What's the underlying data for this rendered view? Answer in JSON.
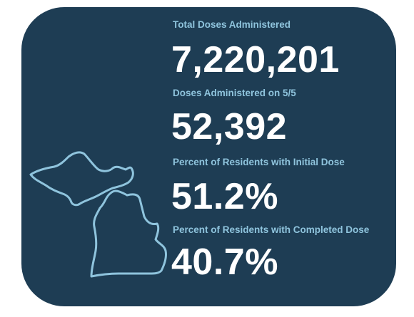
{
  "colors": {
    "card_background": "#1e3d54",
    "label_color": "#8fc4dd",
    "value_color": "#ffffff",
    "map_outline": "#8fc4dd"
  },
  "map": {
    "icon": "michigan-outline-icon"
  },
  "stats": [
    {
      "label": "Total Doses Administered",
      "value": "7,220,201"
    },
    {
      "label": "Doses Administered on 5/5",
      "value": "52,392"
    },
    {
      "label": "Percent of Residents with Initial Dose",
      "value": "51.2%"
    },
    {
      "label": "Percent of Residents with Completed Dose",
      "value": "40.7%"
    }
  ]
}
